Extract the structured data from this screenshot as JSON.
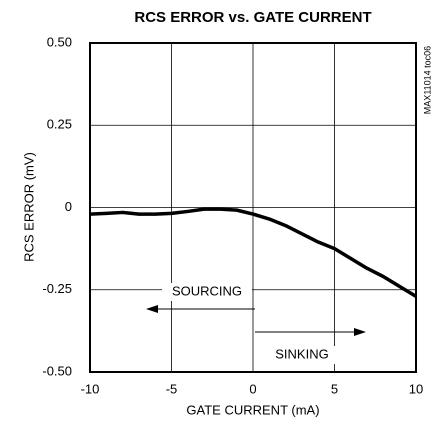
{
  "chart_data": {
    "type": "line",
    "title": "RCS ERROR vs. GATE CURRENT",
    "x_label": "GATE CURRENT (mA)",
    "y_label": "RCS ERROR (mV)",
    "note": "MAX11014 toc06",
    "annotations": [
      "SOURCING",
      "SINKING"
    ],
    "x": [
      -10,
      -9,
      -8,
      -7,
      -6,
      -5,
      -4,
      -3,
      -2,
      -1,
      0,
      1,
      2,
      3,
      4,
      5,
      6,
      7,
      8,
      9,
      10
    ],
    "series": [
      {
        "color": "#000000",
        "values": [
          -0.02,
          -0.018,
          -0.015,
          -0.02,
          -0.02,
          -0.018,
          -0.012,
          -0.005,
          -0.005,
          -0.008,
          -0.02,
          -0.035,
          -0.055,
          -0.08,
          -0.105,
          -0.125,
          -0.155,
          -0.185,
          -0.21,
          -0.24,
          -0.27
        ]
      }
    ],
    "xlim": [
      -10,
      10
    ],
    "xticks": [
      -10,
      -5,
      0,
      5,
      10
    ],
    "ylim": [
      -0.5,
      0.5
    ],
    "yticks": [
      {
        "value": 0.5,
        "label": "0.50"
      },
      {
        "value": 0.25,
        "label": "0.25"
      },
      0,
      {
        "value": -0.25,
        "label": "-0.25"
      },
      {
        "value": -0.5,
        "label": "-0.50"
      }
    ],
    "grid": true
  }
}
